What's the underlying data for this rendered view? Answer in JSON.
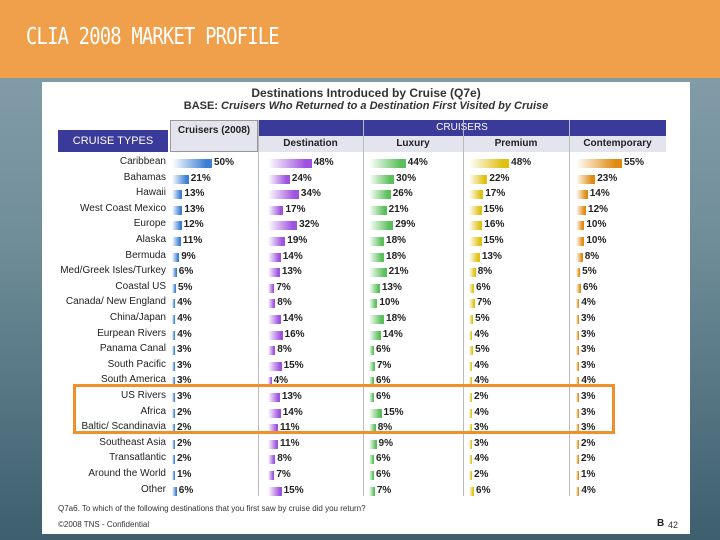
{
  "slide": {
    "title": "CLIA 2008 MARKET PROFILE",
    "page_number": "42",
    "page_mark": "B"
  },
  "chart_data": {
    "type": "bar",
    "title": "Destinations Introduced by Cruise (Q7e)",
    "subtitle_prefix": "BASE:",
    "subtitle": "Cruisers Who Returned to a Destination First Visited by Cruise",
    "row_header": "CRUISE TYPES",
    "group_header": "CRUISERS",
    "xlim": [
      0,
      100
    ],
    "categories": [
      "Caribbean",
      "Bahamas",
      "Hawaii",
      "West Coast Mexico",
      "Europe",
      "Alaska",
      "Bermuda",
      "Med/Greek Isles/Turkey",
      "Coastal US",
      "Canada/ New England",
      "China/Japan",
      "Eurpean Rivers",
      "Panama Canal",
      "South Pacific",
      "South America",
      "US Rivers",
      "Africa",
      "Baltic/ Scandinavia",
      "Southeast Asia",
      "Transatlantic",
      "Around the World",
      "Other"
    ],
    "series": [
      {
        "name": "Cruisers (2008)",
        "values": [
          50,
          21,
          13,
          13,
          12,
          11,
          9,
          6,
          5,
          4,
          4,
          4,
          3,
          3,
          3,
          3,
          2,
          2,
          2,
          2,
          1,
          6
        ],
        "color": "#3d7fd6"
      },
      {
        "name": "Destination",
        "values": [
          48,
          24,
          34,
          17,
          32,
          19,
          14,
          13,
          7,
          8,
          14,
          16,
          8,
          15,
          4,
          13,
          14,
          11,
          11,
          8,
          7,
          15
        ],
        "color": "#9f52e0"
      },
      {
        "name": "Luxury",
        "values": [
          44,
          30,
          26,
          21,
          29,
          18,
          18,
          21,
          13,
          10,
          18,
          14,
          6,
          7,
          6,
          6,
          15,
          8,
          9,
          6,
          6,
          7
        ],
        "color": "#5bbf5b"
      },
      {
        "name": "Premium",
        "values": [
          48,
          22,
          17,
          15,
          16,
          15,
          13,
          8,
          6,
          7,
          5,
          4,
          5,
          4,
          4,
          2,
          4,
          3,
          3,
          4,
          2,
          6
        ],
        "color": "#e0c010"
      },
      {
        "name": "Contemporary",
        "values": [
          55,
          23,
          14,
          12,
          10,
          10,
          8,
          5,
          6,
          4,
          3,
          3,
          3,
          3,
          4,
          3,
          3,
          3,
          2,
          2,
          1,
          4
        ],
        "color": "#e08a10"
      }
    ],
    "highlighted_categories": [
      "US Rivers",
      "Africa",
      "Baltic/ Scandinavia"
    ]
  },
  "labels": {
    "cruisers_2008": "Cruisers (2008)",
    "destination": "Destination",
    "luxury": "Luxury",
    "premium": "Premium",
    "contemporary": "Contemporary"
  },
  "footer": {
    "question": "Q7a6. To which of the following destinations that you first saw by cruise did you return?",
    "copyright": "©2008 TNS - Confidential"
  },
  "colors": {
    "header_dark": "#3a3a9a",
    "header_light": "#e4e4ee",
    "highlight": "#f0902a",
    "topbar": "#f0a04a"
  }
}
